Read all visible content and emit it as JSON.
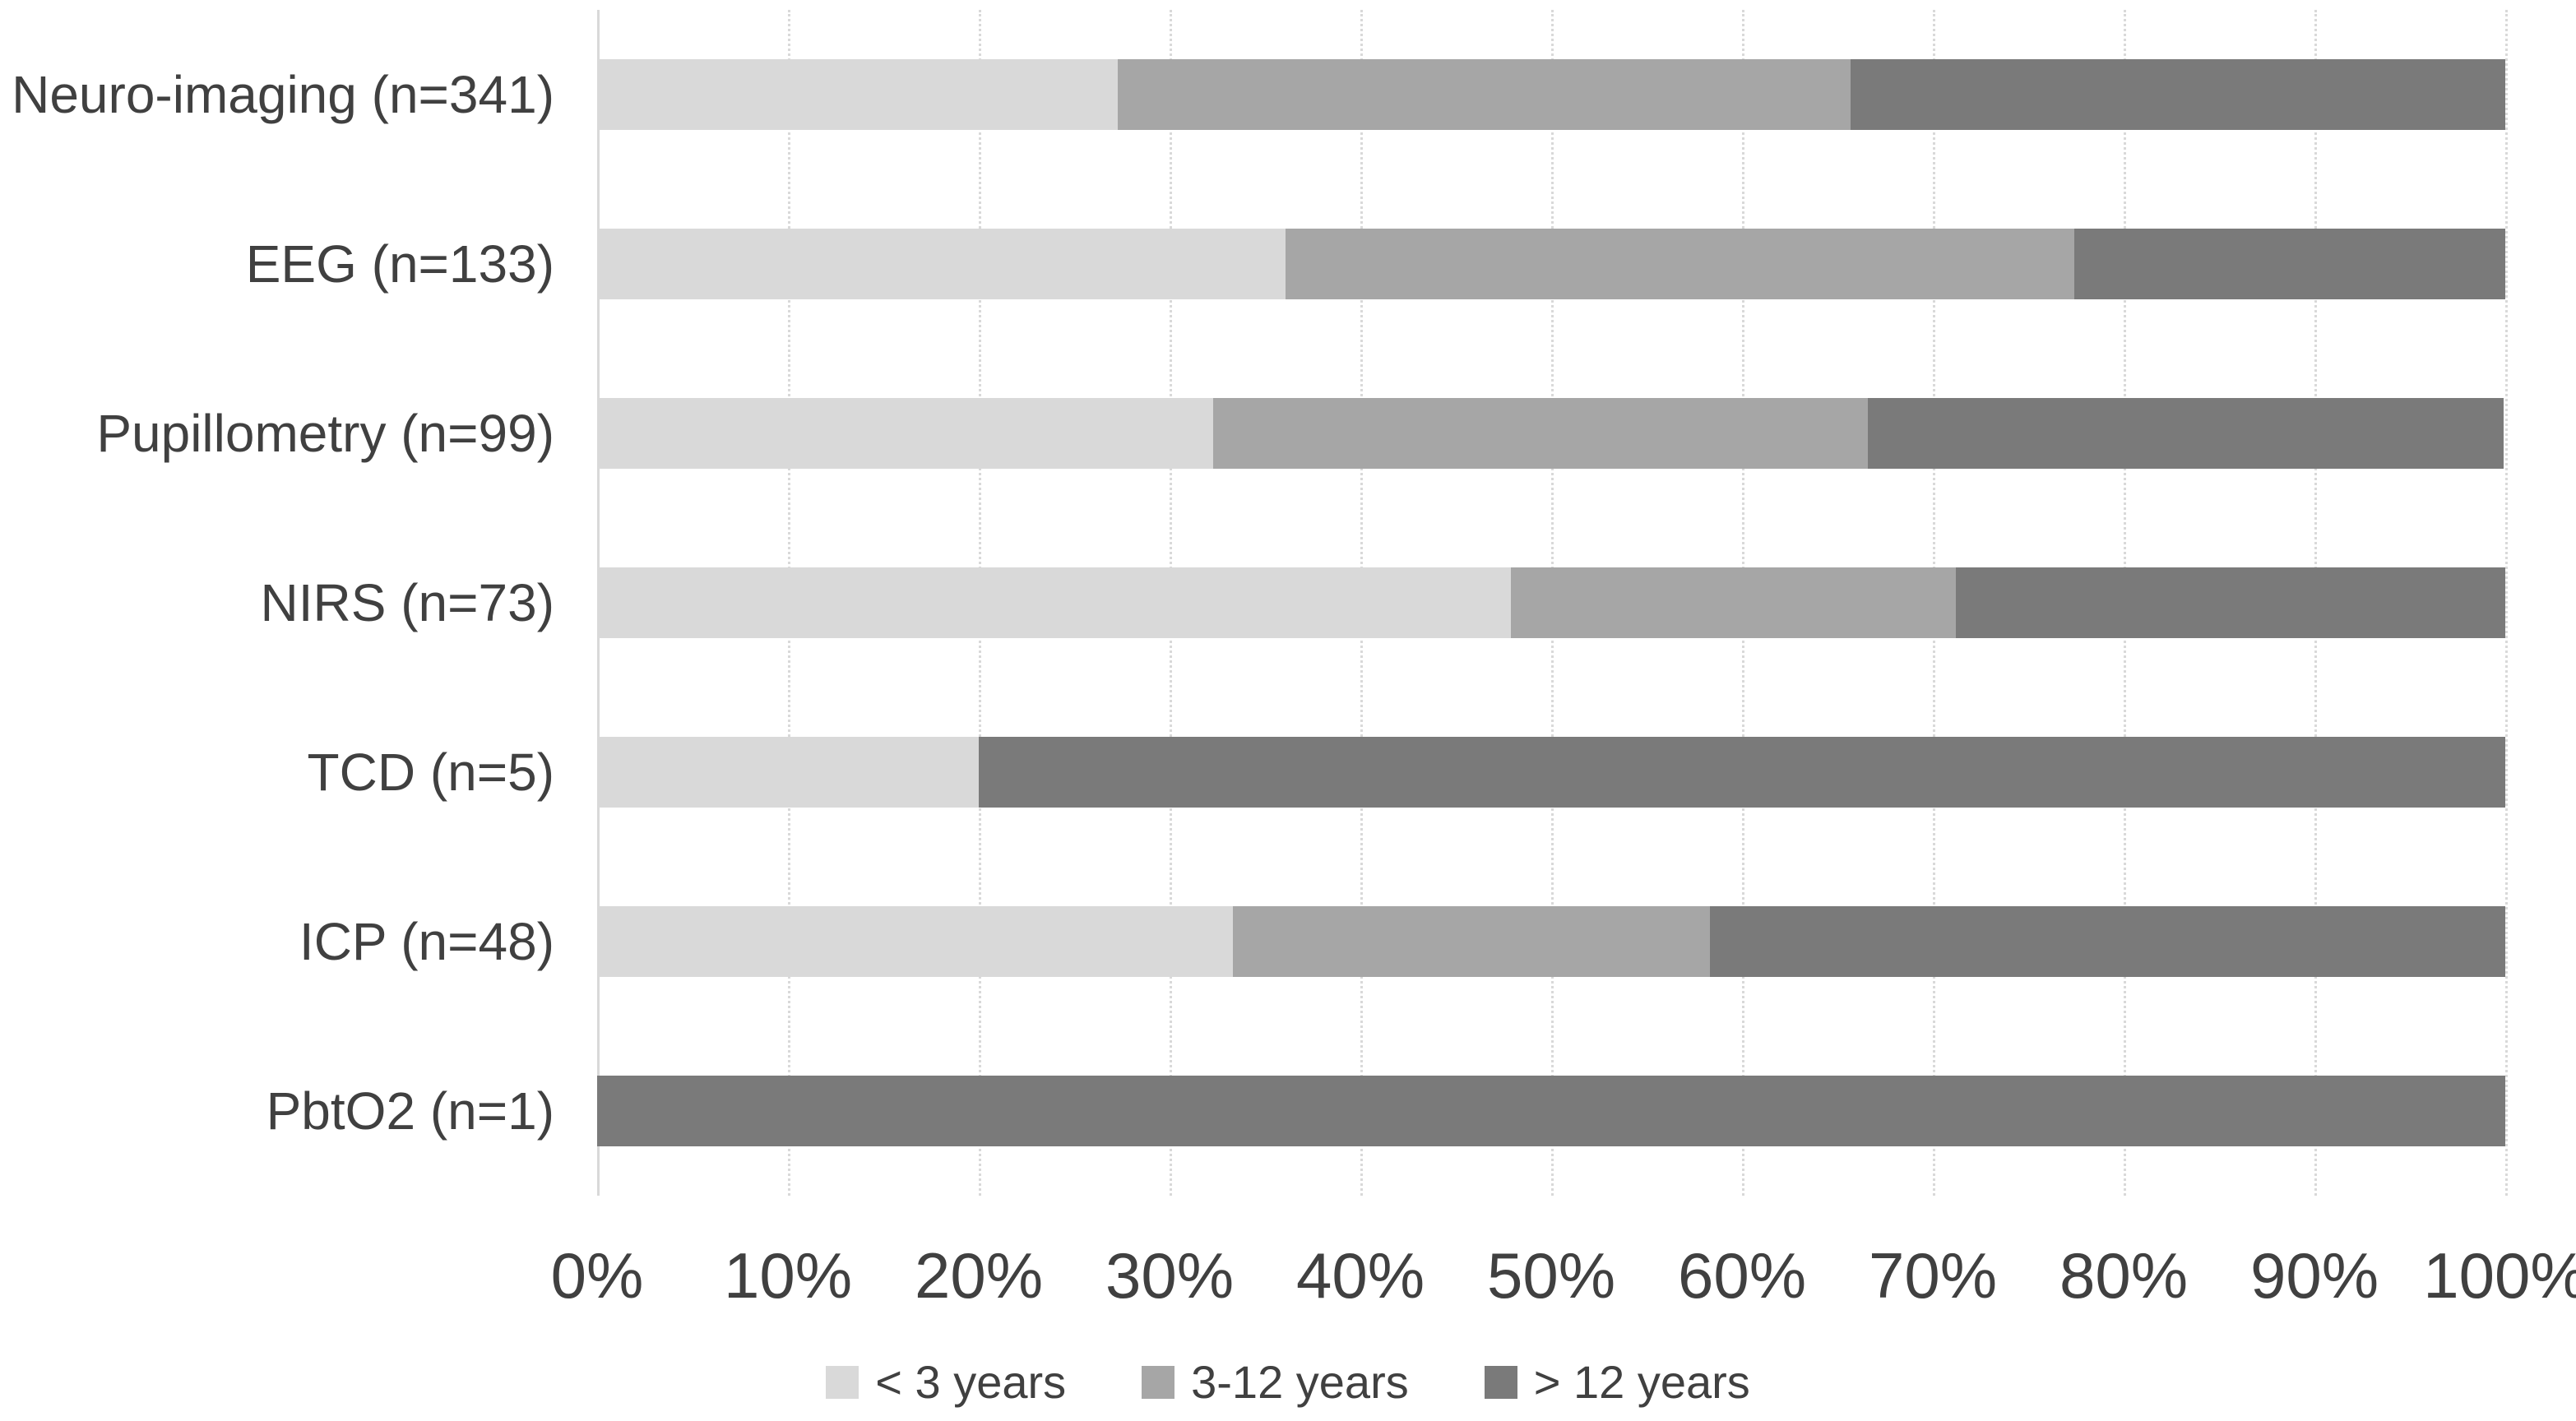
{
  "chart_data": {
    "type": "bar",
    "orientation": "horizontal-stacked",
    "title": "",
    "xlabel": "",
    "ylabel": "",
    "categories": [
      "Neuro-imaging (n=341)",
      "EEG (n=133)",
      "Pupillometry (n=99)",
      "NIRS (n=73)",
      "TCD (n=5)",
      "ICP (n=48)",
      "PbtO2 (n=1)"
    ],
    "series": [
      {
        "name": "< 3 years",
        "color": "#d9d9d9",
        "values": [
          27.3,
          36.1,
          32.3,
          47.9,
          20.0,
          33.3,
          0.0
        ]
      },
      {
        "name": "3-12 years",
        "color": "#a6a6a6",
        "values": [
          38.4,
          41.4,
          34.3,
          23.3,
          0.0,
          25.0,
          0.0
        ]
      },
      {
        "name": "> 12 years",
        "color": "#7a7a7a",
        "values": [
          34.3,
          22.6,
          33.3,
          28.8,
          80.0,
          41.7,
          100.0
        ]
      }
    ],
    "x_axis": {
      "min": 0,
      "max": 100,
      "tick_step": 10,
      "ticks": [
        "0%",
        "10%",
        "20%",
        "30%",
        "40%",
        "50%",
        "60%",
        "70%",
        "80%",
        "90%",
        "100%"
      ]
    },
    "legend": {
      "position": "bottom-center",
      "items": [
        "< 3 years",
        "3-12 years",
        "> 12 years"
      ]
    },
    "grid": "vertical-dotted",
    "colors": {
      "background": "#ffffff",
      "gridline": "#d9d9d9",
      "text": "#404040"
    }
  }
}
